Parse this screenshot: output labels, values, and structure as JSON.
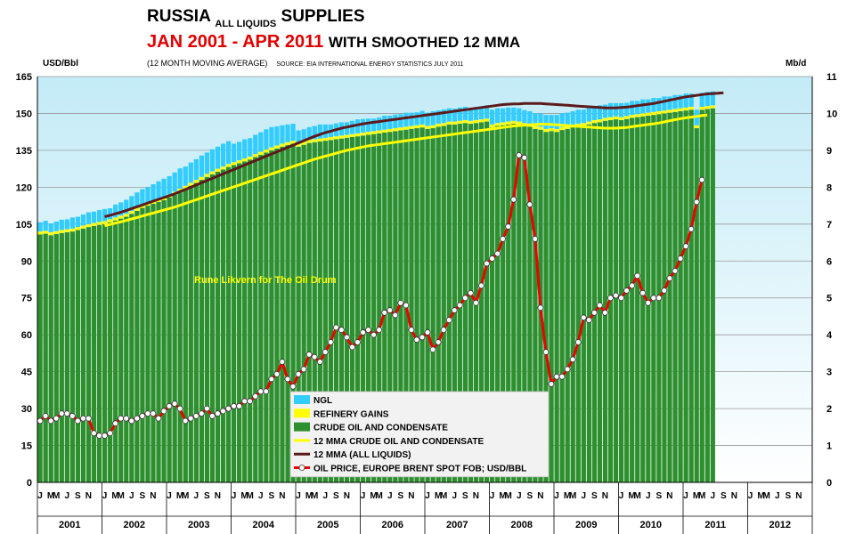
{
  "header": {
    "title_main": "RUSSIA",
    "title_sub": "ALL LIQUIDS",
    "title_end": "SUPPLIES",
    "line2_red": "JAN 2001 - APR 2011",
    "line2_black": "WITH SMOOTHED 12 MMA",
    "line3": "(12 MONTH MOVING AVERAGE)",
    "source": "SOURCE: EIA INTERNATIONAL ENERGY STATISTICS JULY 2011"
  },
  "chart_data": {
    "type": "bar",
    "annotation": "Rune Likvern for The Oil Drum",
    "left_axis": {
      "label": "USD/Bbl",
      "min": 0,
      "max": 165,
      "ticks": [
        0,
        15,
        30,
        45,
        60,
        75,
        90,
        105,
        120,
        135,
        150,
        165
      ]
    },
    "right_axis": {
      "label": "Mb/d",
      "min": 0,
      "max": 11,
      "ticks": [
        0,
        1,
        2,
        3,
        4,
        5,
        6,
        7,
        8,
        9,
        10,
        11
      ]
    },
    "x_range": [
      "2001-01",
      "2012-12"
    ],
    "years": [
      "2001",
      "2002",
      "2003",
      "2004",
      "2005",
      "2006",
      "2007",
      "2008",
      "2009",
      "2010",
      "2011",
      "2012"
    ],
    "month_ticks": [
      "J",
      "",
      "M",
      "M",
      "",
      "J",
      "",
      "S",
      "",
      "N",
      ""
    ],
    "legend": [
      {
        "label": "NGL",
        "color": "#33ccff",
        "kind": "patch"
      },
      {
        "label": "REFINERY GAINS",
        "color": "#ffff00",
        "kind": "patch"
      },
      {
        "label": "CRUDE  OIL AND CONDENSATE",
        "color": "#2d8f2d",
        "kind": "patch"
      },
      {
        "label": "12 MMA CRUDE  OIL AND CONDENSATE",
        "color": "#ffff00",
        "kind": "line"
      },
      {
        "label": "12 MMA (ALL LIQUIDS)",
        "color": "#5c1a1a",
        "kind": "line"
      },
      {
        "label": "OIL PRICE, EUROPE BRENT SPOT FOB; USD/BBL",
        "color": "#ee0000",
        "kind": "line-marker"
      }
    ],
    "crude_mbd": [
      6.72,
      6.74,
      6.7,
      6.73,
      6.76,
      6.78,
      6.8,
      6.84,
      6.88,
      6.92,
      6.95,
      6.98,
      7.0,
      7.05,
      7.1,
      7.15,
      7.2,
      7.28,
      7.36,
      7.44,
      7.5,
      7.55,
      7.6,
      7.65,
      7.72,
      7.8,
      7.88,
      7.96,
      8.04,
      8.12,
      8.2,
      8.28,
      8.35,
      8.42,
      8.48,
      8.55,
      8.6,
      8.65,
      8.7,
      8.75,
      8.82,
      8.88,
      8.94,
      9.0,
      9.05,
      9.1,
      9.14,
      9.18,
      9.1,
      9.15,
      9.2,
      9.22,
      9.24,
      9.26,
      9.28,
      9.3,
      9.32,
      9.34,
      9.36,
      9.38,
      9.4,
      9.42,
      9.44,
      9.46,
      9.48,
      9.5,
      9.52,
      9.54,
      9.56,
      9.58,
      9.6,
      9.62,
      9.58,
      9.6,
      9.64,
      9.66,
      9.7,
      9.7,
      9.72,
      9.74,
      9.72,
      9.74,
      9.76,
      9.78,
      9.62,
      9.66,
      9.68,
      9.7,
      9.72,
      9.7,
      9.66,
      9.64,
      9.58,
      9.56,
      9.5,
      9.52,
      9.5,
      9.55,
      9.58,
      9.62,
      9.64,
      9.66,
      9.7,
      9.74,
      9.76,
      9.8,
      9.82,
      9.84,
      9.82,
      9.85,
      9.88,
      9.9,
      9.92,
      9.94,
      9.96,
      9.98,
      10.0,
      10.02,
      10.04,
      10.06,
      10.08,
      10.1,
      9.6,
      10.1,
      10.12,
      10.14
    ],
    "refinery_gains_mbd": [
      0.08,
      0.08,
      0.08,
      0.08,
      0.08,
      0.08,
      0.08,
      0.08,
      0.08,
      0.08,
      0.08,
      0.08,
      0.08,
      0.08,
      0.08,
      0.08,
      0.08,
      0.08,
      0.08,
      0.08,
      0.08,
      0.08,
      0.08,
      0.08,
      0.08,
      0.08,
      0.08,
      0.08,
      0.08,
      0.08,
      0.08,
      0.08,
      0.08,
      0.08,
      0.08,
      0.08,
      0.08,
      0.08,
      0.08,
      0.08,
      0.08,
      0.08,
      0.08,
      0.08,
      0.08,
      0.08,
      0.08,
      0.08,
      0.08,
      0.08,
      0.08,
      0.08,
      0.08,
      0.08,
      0.08,
      0.08,
      0.08,
      0.08,
      0.08,
      0.08,
      0.08,
      0.08,
      0.08,
      0.08,
      0.08,
      0.08,
      0.08,
      0.08,
      0.08,
      0.08,
      0.08,
      0.08,
      0.08,
      0.08,
      0.08,
      0.08,
      0.08,
      0.08,
      0.08,
      0.08,
      0.08,
      0.08,
      0.08,
      0.08,
      0.08,
      0.08,
      0.08,
      0.08,
      0.08,
      0.08,
      0.08,
      0.08,
      0.08,
      0.08,
      0.08,
      0.08,
      0.08,
      0.08,
      0.08,
      0.08,
      0.08,
      0.08,
      0.08,
      0.08,
      0.08,
      0.08,
      0.08,
      0.08,
      0.08,
      0.08,
      0.08,
      0.08,
      0.08,
      0.08,
      0.08,
      0.08,
      0.08,
      0.08,
      0.08,
      0.08,
      0.08,
      0.08,
      0.08,
      0.08,
      0.08,
      0.08
    ],
    "ngl_mbd": [
      0.25,
      0.27,
      0.24,
      0.26,
      0.28,
      0.27,
      0.3,
      0.28,
      0.3,
      0.32,
      0.31,
      0.32,
      0.33,
      0.3,
      0.35,
      0.36,
      0.38,
      0.4,
      0.42,
      0.43,
      0.42,
      0.45,
      0.48,
      0.5,
      0.5,
      0.52,
      0.55,
      0.52,
      0.55,
      0.56,
      0.58,
      0.58,
      0.6,
      0.6,
      0.62,
      0.62,
      0.5,
      0.5,
      0.52,
      0.5,
      0.52,
      0.53,
      0.55,
      0.55,
      0.52,
      0.5,
      0.48,
      0.46,
      0.36,
      0.34,
      0.35,
      0.36,
      0.38,
      0.36,
      0.34,
      0.35,
      0.36,
      0.34,
      0.36,
      0.38,
      0.37,
      0.36,
      0.34,
      0.35,
      0.38,
      0.36,
      0.37,
      0.36,
      0.38,
      0.36,
      0.35,
      0.37,
      0.36,
      0.38,
      0.36,
      0.37,
      0.36,
      0.35,
      0.36,
      0.36,
      0.34,
      0.36,
      0.35,
      0.36,
      0.4,
      0.4,
      0.38,
      0.38,
      0.36,
      0.36,
      0.35,
      0.34,
      0.35,
      0.36,
      0.38,
      0.36,
      0.38,
      0.38,
      0.36,
      0.36,
      0.38,
      0.36,
      0.38,
      0.36,
      0.38,
      0.36,
      0.38,
      0.36,
      0.38,
      0.36,
      0.38,
      0.36,
      0.38,
      0.36,
      0.38,
      0.36,
      0.38,
      0.36,
      0.38,
      0.36,
      0.38,
      0.36,
      0.42,
      0.38,
      0.38,
      0.38
    ],
    "mma_crude_mbd_start": "2002-01",
    "mma_crude_mbd": [
      6.96,
      6.99,
      7.03,
      7.06,
      7.1,
      7.14,
      7.18,
      7.22,
      7.26,
      7.3,
      7.34,
      7.38,
      7.42,
      7.46,
      7.51,
      7.56,
      7.61,
      7.66,
      7.71,
      7.76,
      7.81,
      7.86,
      7.91,
      7.96,
      8.01,
      8.06,
      8.11,
      8.16,
      8.21,
      8.26,
      8.31,
      8.36,
      8.41,
      8.46,
      8.51,
      8.56,
      8.61,
      8.66,
      8.71,
      8.76,
      8.8,
      8.84,
      8.88,
      8.92,
      8.96,
      9.0,
      9.03,
      9.06,
      9.09,
      9.12,
      9.14,
      9.16,
      9.18,
      9.2,
      9.22,
      9.24,
      9.26,
      9.28,
      9.3,
      9.32,
      9.34,
      9.36,
      9.38,
      9.4,
      9.42,
      9.44,
      9.46,
      9.48,
      9.5,
      9.52,
      9.54,
      9.56,
      9.58,
      9.6,
      9.62,
      9.64,
      9.66,
      9.67,
      9.68,
      9.69,
      9.7,
      9.71,
      9.71,
      9.7,
      9.69,
      9.68,
      9.67,
      9.66,
      9.65,
      9.64,
      9.63,
      9.62,
      9.61,
      9.6,
      9.6,
      9.6,
      9.61,
      9.62,
      9.64,
      9.66,
      9.68,
      9.7,
      9.72,
      9.74,
      9.77,
      9.8,
      9.83,
      9.86,
      9.88,
      9.9,
      9.92,
      9.94,
      9.96
    ],
    "mma_all_mbd_start": "2002-01",
    "mma_all_mbd": [
      7.2,
      7.24,
      7.28,
      7.32,
      7.37,
      7.42,
      7.47,
      7.52,
      7.57,
      7.62,
      7.67,
      7.72,
      7.77,
      7.82,
      7.88,
      7.94,
      8.0,
      8.06,
      8.12,
      8.18,
      8.24,
      8.3,
      8.36,
      8.42,
      8.48,
      8.54,
      8.6,
      8.66,
      8.72,
      8.78,
      8.84,
      8.9,
      8.96,
      9.02,
      9.08,
      9.14,
      9.2,
      9.26,
      9.32,
      9.38,
      9.43,
      9.48,
      9.52,
      9.56,
      9.6,
      9.63,
      9.66,
      9.69,
      9.72,
      9.74,
      9.76,
      9.78,
      9.8,
      9.82,
      9.84,
      9.86,
      9.88,
      9.9,
      9.92,
      9.94,
      9.96,
      9.98,
      10.0,
      10.02,
      10.04,
      10.06,
      10.08,
      10.1,
      10.12,
      10.14,
      10.16,
      10.18,
      10.2,
      10.22,
      10.24,
      10.25,
      10.26,
      10.26,
      10.27,
      10.27,
      10.27,
      10.27,
      10.26,
      10.25,
      10.24,
      10.23,
      10.22,
      10.21,
      10.2,
      10.19,
      10.18,
      10.17,
      10.16,
      10.15,
      10.15,
      10.15,
      10.16,
      10.17,
      10.19,
      10.21,
      10.23,
      10.25,
      10.27,
      10.3,
      10.33,
      10.36,
      10.39,
      10.42,
      10.45,
      10.47,
      10.49,
      10.51,
      10.53,
      10.54,
      10.55,
      10.56
    ],
    "oil_price_usd": [
      25,
      27,
      25,
      26,
      28,
      28,
      27,
      25,
      26,
      26,
      20,
      19,
      19,
      20,
      24,
      26,
      26,
      25,
      26,
      27,
      28,
      28,
      26,
      29,
      31,
      32,
      30,
      25,
      26,
      27,
      28,
      30,
      27,
      28,
      29,
      30,
      31,
      31,
      33,
      33,
      35,
      37,
      37,
      42,
      44,
      49,
      42,
      39,
      44,
      46,
      52,
      51,
      49,
      53,
      57,
      63,
      62,
      59,
      55,
      57,
      61,
      62,
      60,
      62,
      69,
      70,
      68,
      73,
      72,
      62,
      58,
      59,
      61,
      54,
      57,
      62,
      66,
      70,
      72,
      75,
      77,
      73,
      80,
      89,
      91,
      93,
      99,
      104,
      115,
      133,
      132,
      113,
      99,
      71,
      53,
      40,
      43,
      43,
      46,
      50,
      57,
      67,
      66,
      69,
      72,
      69,
      75,
      76,
      75,
      78,
      80,
      84,
      77,
      73,
      75,
      75,
      78,
      83,
      86,
      91,
      96,
      103,
      114,
      123
    ]
  }
}
